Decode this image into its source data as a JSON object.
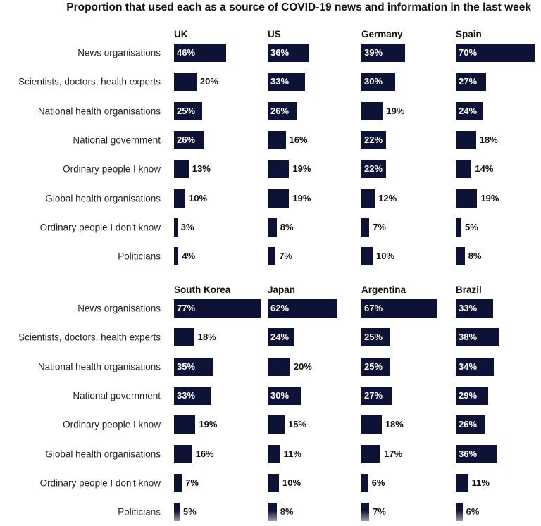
{
  "title": "Proportion that used each as a source of COVID-19 news and information in the last week",
  "chart_data": {
    "type": "bar",
    "orientation": "horizontal",
    "unit": "%",
    "categories": [
      "News organisations",
      "Scientists, doctors, health experts",
      "National health organisations",
      "National government",
      "Ordinary people I know",
      "Global health organisations",
      "Ordinary people I don't know",
      "Politicians"
    ],
    "panels": [
      {
        "series": [
          {
            "name": "UK",
            "values": [
              46,
              20,
              25,
              26,
              13,
              10,
              3,
              4
            ]
          },
          {
            "name": "US",
            "values": [
              36,
              33,
              26,
              16,
              19,
              19,
              8,
              7
            ]
          },
          {
            "name": "Germany",
            "values": [
              39,
              30,
              19,
              22,
              22,
              12,
              7,
              10
            ]
          },
          {
            "name": "Spain",
            "values": [
              70,
              27,
              24,
              18,
              14,
              19,
              5,
              8
            ]
          }
        ]
      },
      {
        "series": [
          {
            "name": "South Korea",
            "values": [
              77,
              18,
              35,
              33,
              19,
              16,
              7,
              5
            ]
          },
          {
            "name": "Japan",
            "values": [
              62,
              24,
              20,
              30,
              15,
              11,
              10,
              8
            ]
          },
          {
            "name": "Argentina",
            "values": [
              67,
              25,
              25,
              27,
              18,
              17,
              6,
              7
            ]
          },
          {
            "name": "Brazil",
            "values": [
              33,
              38,
              34,
              29,
              26,
              36,
              11,
              6
            ]
          }
        ]
      }
    ],
    "bar_color": "#0d1337",
    "grid": false
  }
}
